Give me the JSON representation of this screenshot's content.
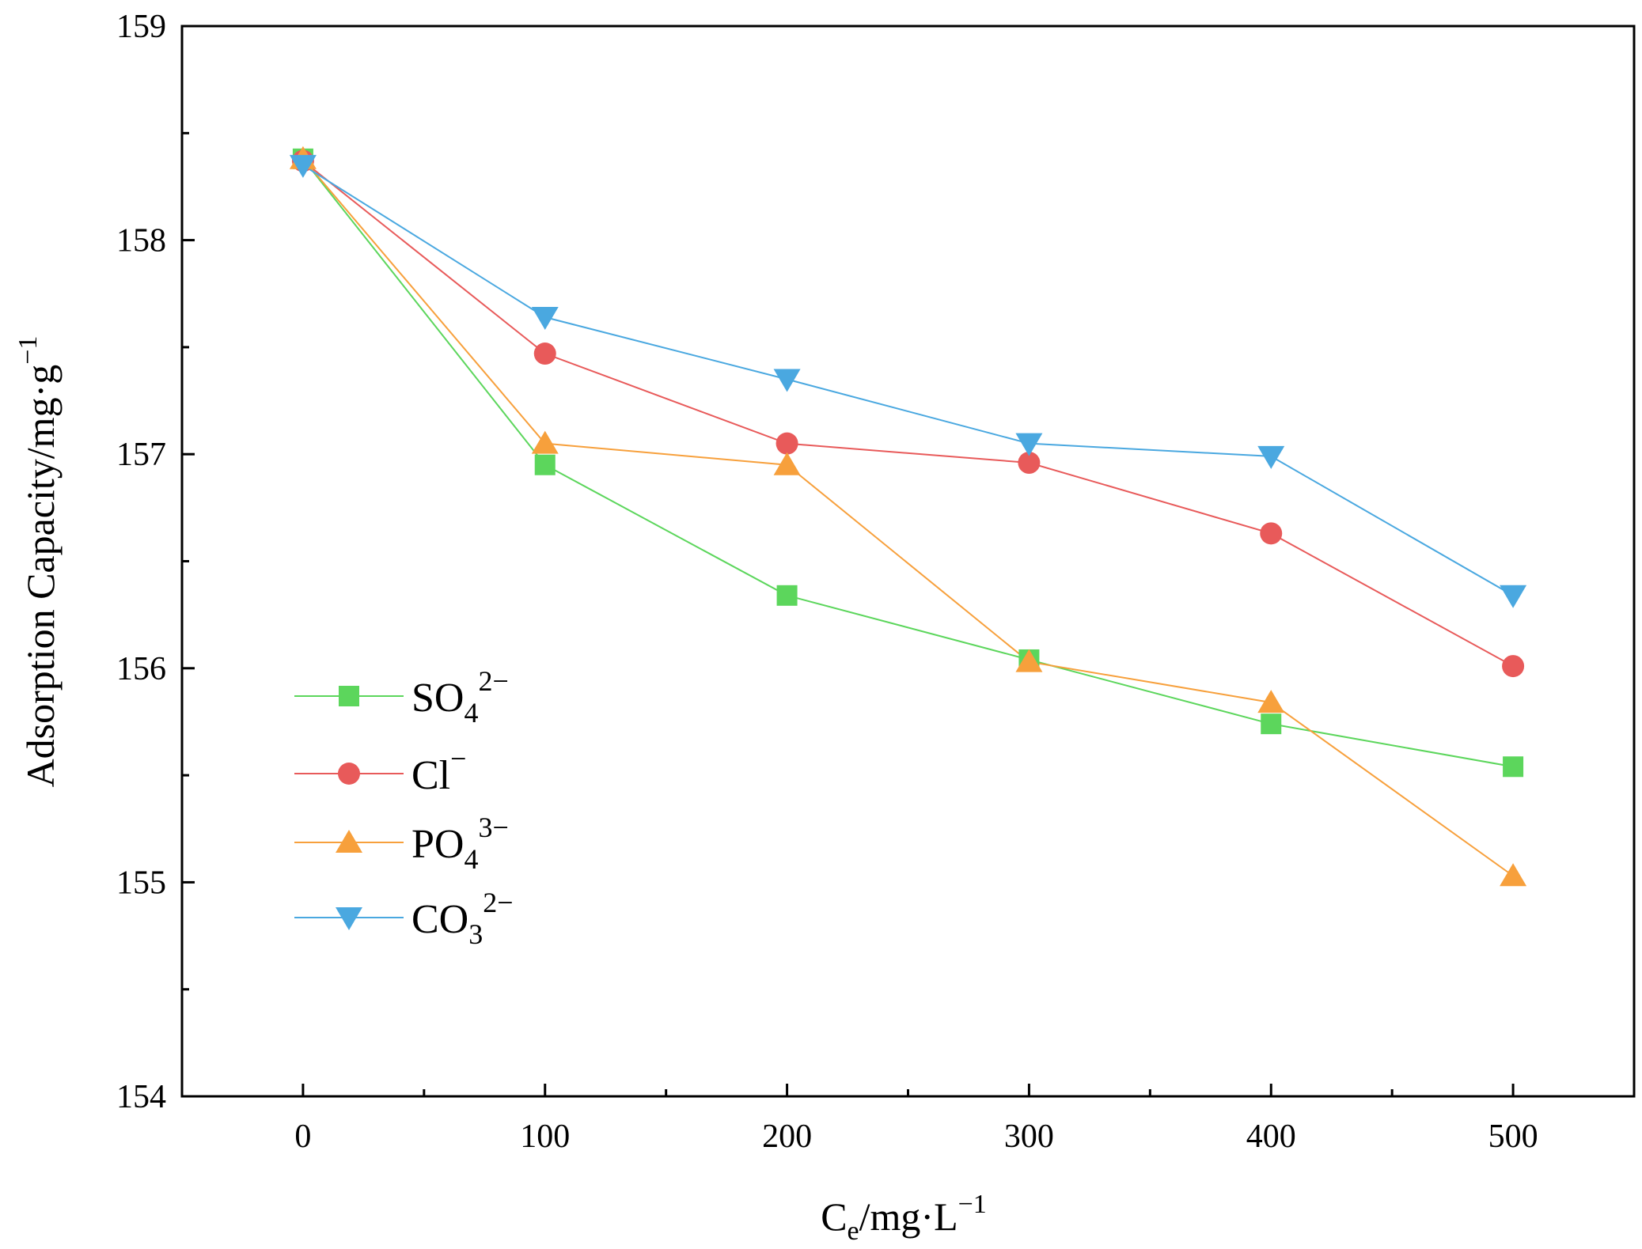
{
  "chart_data": {
    "type": "line",
    "title": "",
    "xlabel": {
      "main": "C",
      "sub": "e",
      "tail": "/mg·L",
      "sup": "−1"
    },
    "ylabel": {
      "main": "Adsorption Capacity/mg·g",
      "sup": "−1"
    },
    "xlim": [
      -50,
      550
    ],
    "ylim": [
      154,
      159
    ],
    "xticks": [
      0,
      100,
      200,
      300,
      400,
      500
    ],
    "yticks": [
      154,
      155,
      156,
      157,
      158,
      159
    ],
    "x": [
      0,
      100,
      200,
      300,
      400,
      500
    ],
    "series": [
      {
        "name": "SO4 2−",
        "base": "SO",
        "sub": "4",
        "sup": "2−",
        "marker": "square",
        "color": "#5cd65c",
        "values": [
          158.38,
          156.95,
          156.34,
          156.04,
          155.74,
          155.54
        ]
      },
      {
        "name": "Cl−",
        "base": "Cl",
        "sub": "",
        "sup": "−",
        "marker": "circle",
        "color": "#e85a5a",
        "values": [
          158.37,
          157.47,
          157.05,
          156.96,
          156.63,
          156.01
        ]
      },
      {
        "name": "PO4 3−",
        "base": "PO",
        "sub": "4",
        "sup": "3−",
        "marker": "triangle-up",
        "color": "#f7a03c",
        "values": [
          158.38,
          157.05,
          156.95,
          156.03,
          155.84,
          155.03
        ]
      },
      {
        "name": "CO3 2−",
        "base": "CO",
        "sub": "3",
        "sup": "2−",
        "marker": "triangle-down",
        "color": "#4aa8e0",
        "values": [
          158.35,
          157.64,
          157.35,
          157.05,
          156.99,
          156.34
        ]
      }
    ],
    "legend_position": "lower-left",
    "grid": false
  }
}
